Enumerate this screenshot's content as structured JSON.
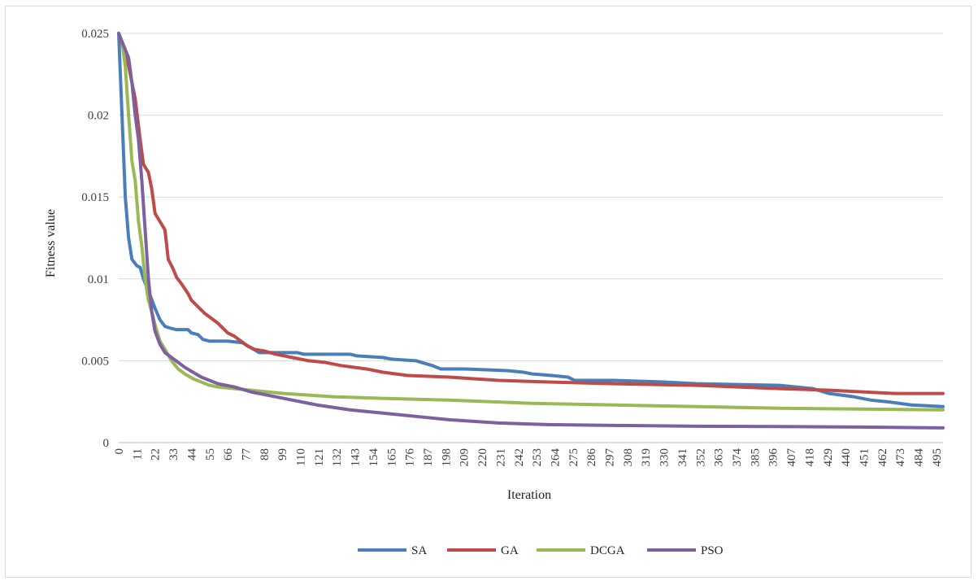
{
  "chart_data": {
    "type": "line",
    "xlabel": "Iteration",
    "ylabel": "Fitness value",
    "xlim": [
      0,
      499
    ],
    "ylim": [
      0,
      0.025
    ],
    "y_ticks": [
      "0",
      "0.005",
      "0.01",
      "0.015",
      "0.02",
      "0.025"
    ],
    "x_ticks": [
      "0",
      "11",
      "22",
      "33",
      "44",
      "55",
      "66",
      "77",
      "88",
      "99",
      "110",
      "121",
      "132",
      "143",
      "154",
      "165",
      "176",
      "187",
      "198",
      "209",
      "220",
      "231",
      "242",
      "253",
      "264",
      "275",
      "286",
      "297",
      "308",
      "319",
      "330",
      "341",
      "352",
      "363",
      "374",
      "385",
      "396",
      "407",
      "418",
      "429",
      "440",
      "451",
      "462",
      "473",
      "484",
      "495"
    ],
    "grid": "horizontal",
    "legend_position": "bottom",
    "series": [
      {
        "name": "SA",
        "color": "#4a7ebb",
        "points": [
          [
            0,
            0.025
          ],
          [
            2,
            0.02
          ],
          [
            4,
            0.015
          ],
          [
            6,
            0.0125
          ],
          [
            8,
            0.0112
          ],
          [
            11,
            0.0108
          ],
          [
            13,
            0.0107
          ],
          [
            15,
            0.01
          ],
          [
            17,
            0.0095
          ],
          [
            19,
            0.009
          ],
          [
            22,
            0.0082
          ],
          [
            25,
            0.0075
          ],
          [
            28,
            0.0071
          ],
          [
            31,
            0.007
          ],
          [
            35,
            0.0069
          ],
          [
            42,
            0.0069
          ],
          [
            44,
            0.0067
          ],
          [
            48,
            0.0066
          ],
          [
            51,
            0.0063
          ],
          [
            55,
            0.0062
          ],
          [
            66,
            0.0062
          ],
          [
            75,
            0.0061
          ],
          [
            80,
            0.0058
          ],
          [
            85,
            0.0055
          ],
          [
            95,
            0.0055
          ],
          [
            108,
            0.0055
          ],
          [
            112,
            0.0054
          ],
          [
            130,
            0.0054
          ],
          [
            140,
            0.0054
          ],
          [
            144,
            0.0053
          ],
          [
            160,
            0.0052
          ],
          [
            165,
            0.0051
          ],
          [
            180,
            0.005
          ],
          [
            190,
            0.0047
          ],
          [
            195,
            0.0045
          ],
          [
            210,
            0.0045
          ],
          [
            235,
            0.0044
          ],
          [
            245,
            0.0043
          ],
          [
            250,
            0.0042
          ],
          [
            262,
            0.0041
          ],
          [
            272,
            0.004
          ],
          [
            276,
            0.0038
          ],
          [
            300,
            0.0038
          ],
          [
            330,
            0.0037
          ],
          [
            350,
            0.0036
          ],
          [
            400,
            0.0035
          ],
          [
            410,
            0.0034
          ],
          [
            420,
            0.0033
          ],
          [
            430,
            0.003
          ],
          [
            445,
            0.0028
          ],
          [
            455,
            0.0026
          ],
          [
            465,
            0.0025
          ],
          [
            480,
            0.0023
          ],
          [
            499,
            0.0022
          ]
        ]
      },
      {
        "name": "GA",
        "color": "#be4b48",
        "points": [
          [
            0,
            0.025
          ],
          [
            3,
            0.024
          ],
          [
            6,
            0.023
          ],
          [
            10,
            0.021
          ],
          [
            13,
            0.0185
          ],
          [
            15,
            0.017
          ],
          [
            18,
            0.0165
          ],
          [
            20,
            0.0155
          ],
          [
            22,
            0.014
          ],
          [
            25,
            0.0135
          ],
          [
            28,
            0.013
          ],
          [
            30,
            0.0112
          ],
          [
            33,
            0.0106
          ],
          [
            35,
            0.0101
          ],
          [
            38,
            0.0097
          ],
          [
            42,
            0.0091
          ],
          [
            44,
            0.0087
          ],
          [
            48,
            0.0083
          ],
          [
            52,
            0.0079
          ],
          [
            56,
            0.0076
          ],
          [
            60,
            0.0073
          ],
          [
            63,
            0.007
          ],
          [
            66,
            0.0067
          ],
          [
            70,
            0.0065
          ],
          [
            74,
            0.0062
          ],
          [
            78,
            0.0059
          ],
          [
            82,
            0.0057
          ],
          [
            88,
            0.0056
          ],
          [
            95,
            0.0054
          ],
          [
            105,
            0.0052
          ],
          [
            115,
            0.005
          ],
          [
            125,
            0.0049
          ],
          [
            135,
            0.0047
          ],
          [
            150,
            0.0045
          ],
          [
            160,
            0.0043
          ],
          [
            175,
            0.0041
          ],
          [
            200,
            0.004
          ],
          [
            230,
            0.0038
          ],
          [
            260,
            0.0037
          ],
          [
            300,
            0.0036
          ],
          [
            350,
            0.0035
          ],
          [
            400,
            0.0033
          ],
          [
            430,
            0.0032
          ],
          [
            450,
            0.0031
          ],
          [
            470,
            0.003
          ],
          [
            499,
            0.003
          ]
        ]
      },
      {
        "name": "DCGA",
        "color": "#98b954",
        "points": [
          [
            0,
            0.025
          ],
          [
            2,
            0.0245
          ],
          [
            4,
            0.023
          ],
          [
            6,
            0.02
          ],
          [
            8,
            0.0172
          ],
          [
            10,
            0.016
          ],
          [
            12,
            0.0135
          ],
          [
            14,
            0.012
          ],
          [
            16,
            0.01
          ],
          [
            18,
            0.0087
          ],
          [
            20,
            0.008
          ],
          [
            22,
            0.0072
          ],
          [
            25,
            0.0062
          ],
          [
            28,
            0.0057
          ],
          [
            32,
            0.005
          ],
          [
            36,
            0.0045
          ],
          [
            40,
            0.0042
          ],
          [
            45,
            0.0039
          ],
          [
            50,
            0.0037
          ],
          [
            55,
            0.0035
          ],
          [
            60,
            0.0034
          ],
          [
            70,
            0.0033
          ],
          [
            80,
            0.0032
          ],
          [
            100,
            0.003
          ],
          [
            130,
            0.0028
          ],
          [
            160,
            0.0027
          ],
          [
            200,
            0.0026
          ],
          [
            250,
            0.0024
          ],
          [
            300,
            0.0023
          ],
          [
            350,
            0.0022
          ],
          [
            400,
            0.0021
          ],
          [
            450,
            0.00205
          ],
          [
            499,
            0.002
          ]
        ]
      },
      {
        "name": "PSO",
        "color": "#7d60a0",
        "points": [
          [
            0,
            0.025
          ],
          [
            2,
            0.0245
          ],
          [
            4,
            0.024
          ],
          [
            6,
            0.0235
          ],
          [
            8,
            0.022
          ],
          [
            10,
            0.02
          ],
          [
            12,
            0.0185
          ],
          [
            14,
            0.016
          ],
          [
            16,
            0.013
          ],
          [
            18,
            0.01
          ],
          [
            20,
            0.008
          ],
          [
            22,
            0.0068
          ],
          [
            25,
            0.006
          ],
          [
            28,
            0.0055
          ],
          [
            32,
            0.0052
          ],
          [
            36,
            0.0049
          ],
          [
            40,
            0.0046
          ],
          [
            45,
            0.0043
          ],
          [
            50,
            0.004
          ],
          [
            55,
            0.0038
          ],
          [
            60,
            0.0036
          ],
          [
            70,
            0.0034
          ],
          [
            80,
            0.0031
          ],
          [
            100,
            0.0027
          ],
          [
            120,
            0.0023
          ],
          [
            140,
            0.002
          ],
          [
            160,
            0.0018
          ],
          [
            180,
            0.0016
          ],
          [
            200,
            0.0014
          ],
          [
            230,
            0.0012
          ],
          [
            260,
            0.0011
          ],
          [
            300,
            0.00105
          ],
          [
            350,
            0.001
          ],
          [
            400,
            0.00098
          ],
          [
            450,
            0.00095
          ],
          [
            499,
            0.0009
          ]
        ]
      }
    ]
  }
}
